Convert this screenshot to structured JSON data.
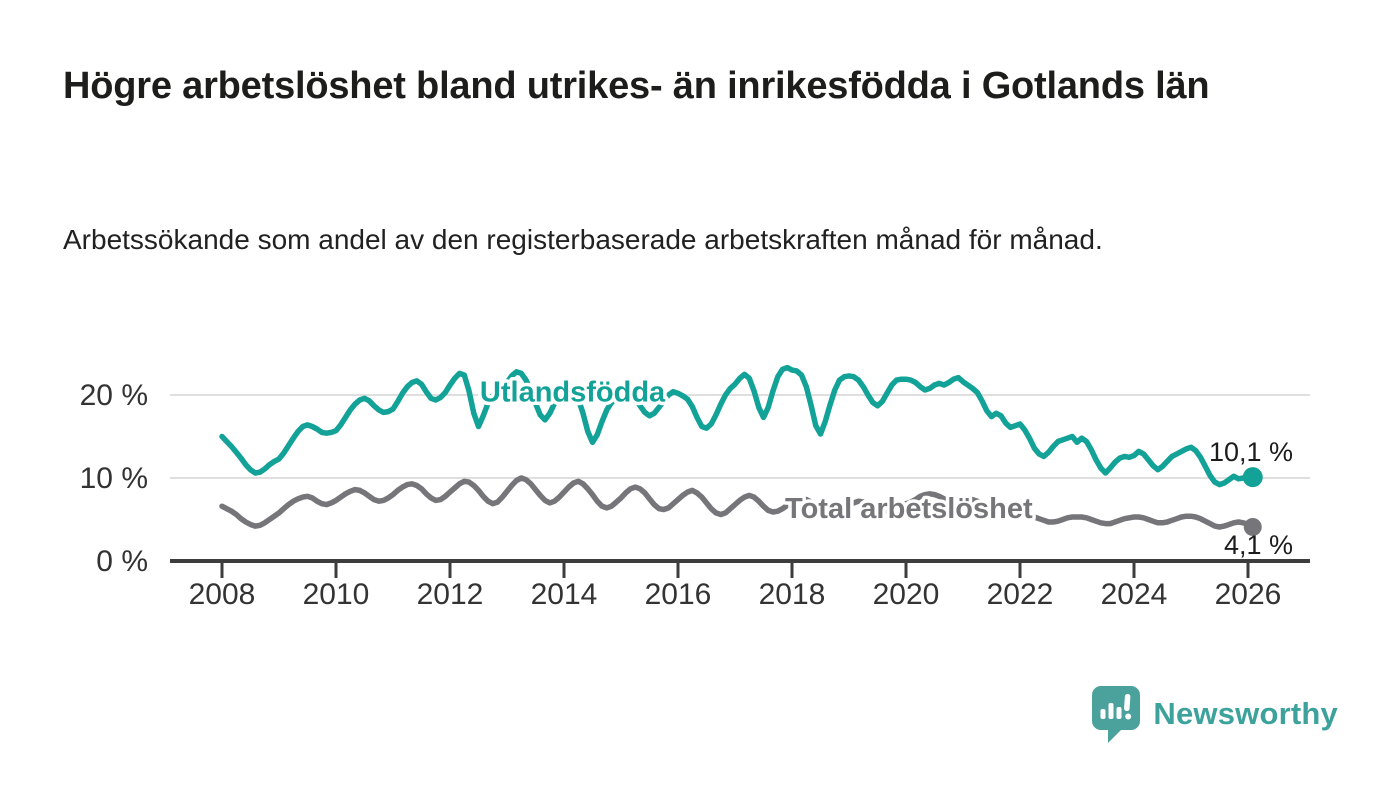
{
  "header": {
    "title": "Högre arbetslöshet bland utrikes- än inrikesfödda i Gotlands län",
    "subtitle": "Arbetssökande som andel av den registerbaserade arbetskraften månad för månad."
  },
  "footer": {
    "brand": "Newsworthy",
    "logo_icon": "newsworthy-speech-bubble-bar-chart-icon",
    "brand_color": "#3da29b",
    "logo_color": "#4ba29c"
  },
  "chart_data": {
    "type": "line",
    "title": "",
    "xlabel": "",
    "ylabel": "",
    "frequency": "monthly",
    "start_year": 2008,
    "end_point": "2026-02",
    "x_tick_labels": [
      "2008",
      "2010",
      "2012",
      "2014",
      "2016",
      "2018",
      "2020",
      "2022",
      "2024",
      "2026"
    ],
    "x_ticks": [
      2008,
      2010,
      2012,
      2014,
      2016,
      2018,
      2020,
      2022,
      2024,
      2026
    ],
    "y_ticks": [
      0,
      10,
      20
    ],
    "y_tick_labels": [
      "0 %",
      "10 %",
      "20 %"
    ],
    "ylim": [
      0,
      24.5
    ],
    "xlim": [
      2007.1,
      2027.1
    ],
    "grid": true,
    "legend": "inline-series-labels",
    "axis_color": "#3d3d3d",
    "grid_color": "#dfdfdf",
    "tick_text_color": "#333333",
    "value_label_color": "#1c1c1c",
    "series": [
      {
        "name": "Utlandsfödda",
        "color": "#13a297",
        "end_label": "10,1 %",
        "end_value": 10.1,
        "label_pos": {
          "year": 2014.15,
          "pct": 20.3
        },
        "values": [
          15.0,
          14.4,
          13.8,
          13.1,
          12.4,
          11.6,
          11.0,
          10.6,
          10.7,
          11.1,
          11.6,
          12.0,
          12.3,
          13.0,
          13.9,
          14.8,
          15.6,
          16.2,
          16.4,
          16.2,
          15.9,
          15.5,
          15.4,
          15.5,
          15.7,
          16.4,
          17.3,
          18.2,
          18.9,
          19.4,
          19.6,
          19.3,
          18.7,
          18.2,
          17.9,
          18.0,
          18.3,
          19.2,
          20.2,
          21.0,
          21.5,
          21.7,
          21.3,
          20.4,
          19.6,
          19.4,
          19.7,
          20.3,
          21.2,
          22.0,
          22.6,
          22.4,
          20.5,
          17.8,
          16.2,
          17.5,
          19.0,
          19.9,
          20.4,
          20.8,
          21.5,
          22.3,
          22.8,
          22.6,
          21.8,
          20.5,
          19.0,
          17.6,
          17.0,
          17.8,
          19.0,
          19.9,
          20.3,
          20.6,
          20.4,
          19.5,
          17.8,
          15.6,
          14.3,
          15.2,
          16.8,
          18.2,
          19.1,
          19.6,
          20.0,
          20.3,
          20.2,
          19.6,
          18.7,
          17.9,
          17.5,
          17.8,
          18.5,
          19.3,
          20.0,
          20.4,
          20.2,
          19.9,
          19.5,
          18.6,
          17.3,
          16.2,
          16.0,
          16.5,
          17.6,
          18.9,
          20.0,
          20.8,
          21.3,
          22.0,
          22.5,
          22.0,
          20.5,
          18.5,
          17.3,
          18.5,
          20.5,
          22.2,
          23.1,
          23.3,
          23.0,
          22.9,
          22.4,
          21.0,
          18.8,
          16.3,
          15.3,
          16.8,
          18.8,
          20.6,
          21.8,
          22.2,
          22.3,
          22.2,
          21.8,
          21.0,
          20.0,
          19.1,
          18.7,
          19.2,
          20.2,
          21.2,
          21.8,
          21.9,
          21.9,
          21.8,
          21.5,
          21.0,
          20.6,
          20.8,
          21.2,
          21.4,
          21.2,
          21.5,
          21.9,
          22.1,
          21.6,
          21.2,
          20.8,
          20.3,
          19.3,
          18.1,
          17.4,
          17.8,
          17.5,
          16.6,
          16.1,
          16.3,
          16.5,
          15.8,
          14.8,
          13.6,
          12.9,
          12.6,
          13.1,
          13.8,
          14.4,
          14.6,
          14.8,
          15.0,
          14.3,
          14.8,
          14.4,
          13.4,
          12.2,
          11.2,
          10.6,
          11.2,
          11.9,
          12.4,
          12.6,
          12.5,
          12.7,
          13.2,
          12.9,
          12.2,
          11.5,
          11.0,
          11.4,
          12.0,
          12.6,
          12.9,
          13.2,
          13.5,
          13.7,
          13.3,
          12.5,
          11.4,
          10.3,
          9.5,
          9.2,
          9.4,
          9.8,
          10.2,
          9.9,
          10.0,
          10.2,
          10.1
        ]
      },
      {
        "name": "Total arbetslöshet",
        "color": "#76757a",
        "end_label": "4,1 %",
        "end_value": 4.1,
        "label_pos": {
          "year": 2020.05,
          "pct": 6.25
        },
        "values": [
          6.6,
          6.3,
          6.0,
          5.6,
          5.1,
          4.7,
          4.4,
          4.2,
          4.3,
          4.6,
          5.0,
          5.4,
          5.8,
          6.3,
          6.8,
          7.2,
          7.5,
          7.7,
          7.8,
          7.6,
          7.2,
          6.9,
          6.8,
          7.0,
          7.3,
          7.7,
          8.1,
          8.4,
          8.6,
          8.5,
          8.2,
          7.8,
          7.4,
          7.2,
          7.3,
          7.6,
          8.0,
          8.5,
          8.9,
          9.2,
          9.3,
          9.1,
          8.7,
          8.1,
          7.6,
          7.3,
          7.4,
          7.8,
          8.3,
          8.8,
          9.3,
          9.6,
          9.5,
          9.1,
          8.5,
          7.8,
          7.2,
          6.9,
          7.1,
          7.7,
          8.4,
          9.1,
          9.7,
          10.0,
          9.8,
          9.3,
          8.6,
          7.9,
          7.3,
          7.0,
          7.2,
          7.7,
          8.3,
          8.9,
          9.4,
          9.6,
          9.3,
          8.7,
          8.0,
          7.2,
          6.6,
          6.4,
          6.6,
          7.1,
          7.6,
          8.2,
          8.7,
          8.9,
          8.7,
          8.2,
          7.5,
          6.8,
          6.3,
          6.2,
          6.4,
          6.9,
          7.4,
          7.9,
          8.3,
          8.5,
          8.2,
          7.7,
          7.0,
          6.3,
          5.8,
          5.6,
          5.8,
          6.3,
          6.8,
          7.3,
          7.7,
          7.9,
          7.7,
          7.2,
          6.6,
          6.1,
          5.9,
          6.0,
          6.3,
          6.7,
          7.0,
          7.3,
          7.5,
          7.4,
          7.1,
          6.7,
          6.2,
          5.9,
          5.8,
          5.9,
          6.2,
          6.5,
          6.8,
          7.0,
          7.2,
          7.1,
          6.9,
          6.6,
          6.3,
          6.1,
          6.0,
          6.1,
          6.3,
          6.6,
          6.9,
          7.1,
          7.4,
          7.8,
          8.0,
          8.1,
          8.0,
          7.8,
          7.5,
          7.3,
          7.2,
          7.2,
          7.3,
          7.4,
          7.4,
          7.2,
          7.0,
          6.7,
          6.4,
          6.1,
          5.9,
          5.8,
          5.7,
          5.7,
          5.7,
          5.6,
          5.5,
          5.3,
          5.1,
          4.9,
          4.7,
          4.7,
          4.8,
          5.0,
          5.2,
          5.3,
          5.3,
          5.3,
          5.2,
          5.0,
          4.8,
          4.6,
          4.5,
          4.5,
          4.7,
          4.9,
          5.1,
          5.2,
          5.3,
          5.3,
          5.2,
          5.0,
          4.8,
          4.6,
          4.6,
          4.7,
          4.9,
          5.1,
          5.3,
          5.4,
          5.4,
          5.3,
          5.1,
          4.8,
          4.5,
          4.2,
          4.1,
          4.2,
          4.4,
          4.6,
          4.7,
          4.6,
          4.4,
          4.1
        ]
      }
    ]
  }
}
